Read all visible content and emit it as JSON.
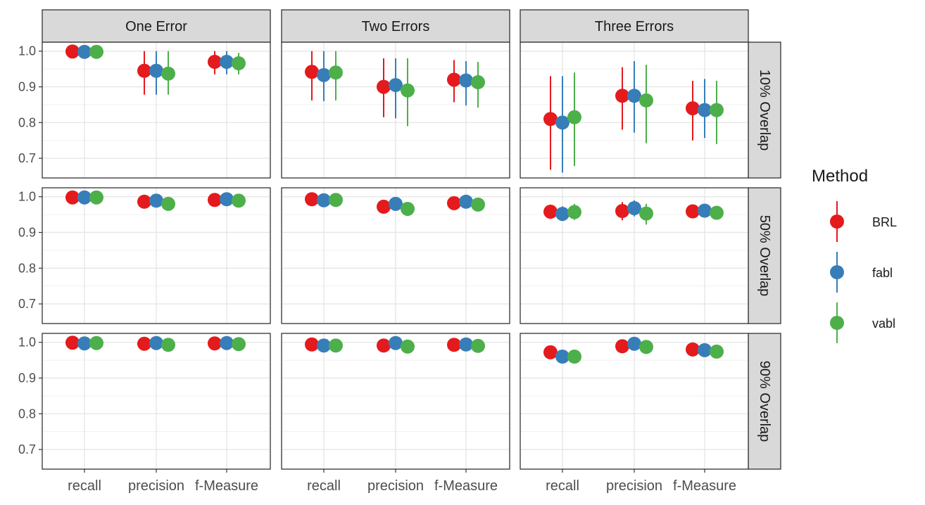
{
  "chart_data": {
    "type": "scatter",
    "facet_columns": [
      "One Error",
      "Two Errors",
      "Three Errors"
    ],
    "facet_rows": [
      "10% Overlap",
      "50% Overlap",
      "90% Overlap"
    ],
    "categories": [
      "recall",
      "precision",
      "f-Measure"
    ],
    "y_ticks": [
      "0.7",
      "0.8",
      "0.9",
      "1.0"
    ],
    "ylim": [
      0.645,
      1.025
    ],
    "grid": true,
    "legend": {
      "title": "Method",
      "position": "right",
      "entries": [
        "BRL",
        "fabl",
        "vabl"
      ]
    },
    "colors": {
      "BRL": "#e41a1c",
      "fabl": "#377eb8",
      "vabl": "#4daf4a"
    },
    "series": [
      {
        "name": "BRL",
        "panels": [
          [
            [
              0.999,
              0.996,
              1.0
            ],
            [
              0.945,
              0.878,
              1.0
            ],
            [
              0.97,
              0.935,
              1.0
            ]
          ],
          [
            [
              0.942,
              0.862,
              1.0
            ],
            [
              0.9,
              0.815,
              0.98
            ],
            [
              0.92,
              0.857,
              0.975
            ]
          ],
          [
            [
              0.81,
              0.668,
              0.93
            ],
            [
              0.875,
              0.78,
              0.955
            ],
            [
              0.84,
              0.75,
              0.917
            ]
          ],
          [
            [
              0.998,
              0.993,
              1.0
            ],
            [
              0.986,
              0.977,
              0.995
            ],
            [
              0.991,
              0.985,
              0.997
            ]
          ],
          [
            [
              0.993,
              0.987,
              0.998
            ],
            [
              0.972,
              0.963,
              0.981
            ],
            [
              0.982,
              0.975,
              0.989
            ]
          ],
          [
            [
              0.958,
              0.938,
              0.978
            ],
            [
              0.96,
              0.934,
              0.985
            ],
            [
              0.959,
              0.949,
              0.969
            ]
          ],
          [
            [
              0.999,
              0.996,
              1.0
            ],
            [
              0.996,
              0.99,
              1.0
            ],
            [
              0.997,
              0.993,
              1.0
            ]
          ],
          [
            [
              0.994,
              0.989,
              0.998
            ],
            [
              0.991,
              0.984,
              0.997
            ],
            [
              0.993,
              0.988,
              0.998
            ]
          ],
          [
            [
              0.972,
              0.963,
              0.981
            ],
            [
              0.989,
              0.982,
              0.996
            ],
            [
              0.98,
              0.973,
              0.987
            ]
          ]
        ]
      },
      {
        "name": "fabl",
        "panels": [
          [
            [
              0.998,
              0.994,
              1.0
            ],
            [
              0.945,
              0.878,
              1.0
            ],
            [
              0.97,
              0.935,
              1.0
            ]
          ],
          [
            [
              0.933,
              0.86,
              1.0
            ],
            [
              0.905,
              0.812,
              0.98
            ],
            [
              0.918,
              0.848,
              0.972
            ]
          ],
          [
            [
              0.8,
              0.66,
              0.93
            ],
            [
              0.875,
              0.772,
              0.972
            ],
            [
              0.835,
              0.757,
              0.922
            ]
          ],
          [
            [
              0.998,
              0.993,
              1.0
            ],
            [
              0.989,
              0.98,
              0.997
            ],
            [
              0.993,
              0.987,
              0.998
            ]
          ],
          [
            [
              0.99,
              0.983,
              0.996
            ],
            [
              0.98,
              0.97,
              0.99
            ],
            [
              0.986,
              0.979,
              0.993
            ]
          ],
          [
            [
              0.952,
              0.932,
              0.973
            ],
            [
              0.968,
              0.945,
              0.99
            ],
            [
              0.961,
              0.95,
              0.972
            ]
          ],
          [
            [
              0.997,
              0.993,
              1.0
            ],
            [
              0.998,
              0.993,
              1.0
            ],
            [
              0.998,
              0.994,
              1.0
            ]
          ],
          [
            [
              0.991,
              0.986,
              0.996
            ],
            [
              0.998,
              0.993,
              1.0
            ],
            [
              0.994,
              0.989,
              0.998
            ]
          ],
          [
            [
              0.96,
              0.951,
              0.969
            ],
            [
              0.996,
              0.989,
              1.0
            ],
            [
              0.978,
              0.97,
              0.986
            ]
          ]
        ]
      },
      {
        "name": "vabl",
        "panels": [
          [
            [
              0.998,
              0.994,
              1.0
            ],
            [
              0.937,
              0.878,
              1.0
            ],
            [
              0.966,
              0.935,
              0.995
            ]
          ],
          [
            [
              0.94,
              0.862,
              1.0
            ],
            [
              0.89,
              0.79,
              0.98
            ],
            [
              0.913,
              0.842,
              0.97
            ]
          ],
          [
            [
              0.815,
              0.678,
              0.94
            ],
            [
              0.862,
              0.742,
              0.962
            ],
            [
              0.835,
              0.74,
              0.917
            ]
          ],
          [
            [
              0.998,
              0.993,
              1.0
            ],
            [
              0.98,
              0.97,
              0.99
            ],
            [
              0.989,
              0.983,
              0.995
            ]
          ],
          [
            [
              0.991,
              0.984,
              0.997
            ],
            [
              0.966,
              0.956,
              0.976
            ],
            [
              0.978,
              0.971,
              0.985
            ]
          ],
          [
            [
              0.957,
              0.935,
              0.98
            ],
            [
              0.953,
              0.922,
              0.98
            ],
            [
              0.955,
              0.944,
              0.966
            ]
          ],
          [
            [
              0.998,
              0.994,
              1.0
            ],
            [
              0.993,
              0.987,
              0.999
            ],
            [
              0.995,
              0.99,
              1.0
            ]
          ],
          [
            [
              0.991,
              0.986,
              0.996
            ],
            [
              0.988,
              0.982,
              0.994
            ],
            [
              0.99,
              0.985,
              0.995
            ]
          ],
          [
            [
              0.96,
              0.951,
              0.969
            ],
            [
              0.987,
              0.98,
              0.994
            ],
            [
              0.974,
              0.966,
              0.982
            ]
          ]
        ]
      }
    ]
  }
}
